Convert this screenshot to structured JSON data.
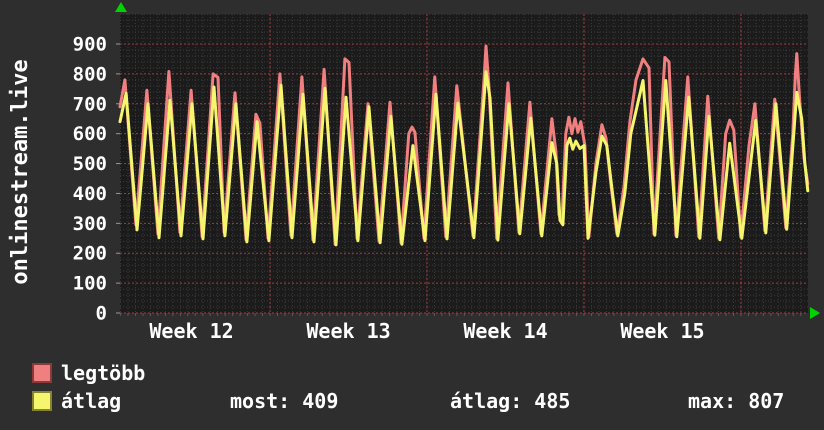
{
  "title": "onlinestream.live",
  "colors": {
    "background": "#2e2e2e",
    "plot_background": "#1b1b1b",
    "text": "#ffffff",
    "grid_minor": "#3c3c3c",
    "grid_day": "#4d4d4d",
    "grid_major_red": "#aa3a3a",
    "tick_bottom": "#5a5a5a",
    "tick_left": "#999999",
    "arrow_green": "#00d400",
    "series_legtobb": "#f08080",
    "series_atlag": "#f5f56e",
    "swatch_border_legtobb": "#8a3a3a",
    "swatch_border_atlag": "#85852f"
  },
  "legend": {
    "series": [
      {
        "label": "legtöbb",
        "color": "#f08080"
      },
      {
        "label": "átlag",
        "color": "#f5f56e"
      }
    ],
    "stats": [
      {
        "key": "most",
        "text": "most: 409"
      },
      {
        "key": "atlag",
        "text": "átlag: 485"
      },
      {
        "key": "max",
        "text": "max: 807"
      }
    ]
  },
  "chart_data": {
    "type": "line",
    "title": "onlinestream.live",
    "xlabel": "",
    "ylabel": "",
    "ylim": [
      0,
      900
    ],
    "y_ticks": [
      0,
      100,
      200,
      300,
      400,
      500,
      600,
      700,
      800,
      900
    ],
    "y_minor_step": 20,
    "grid": true,
    "legend_position": "bottom-left",
    "x_total_days": 30.68,
    "x_week_boundaries_days": [
      6.69,
      13.69,
      20.69,
      27.69
    ],
    "x_tick_labels": [
      {
        "label": "Week 12",
        "day": 3.19
      },
      {
        "label": "Week 13",
        "day": 10.19
      },
      {
        "label": "Week 14",
        "day": 17.19
      },
      {
        "label": "Week 15",
        "day": 24.19
      }
    ],
    "stats": {
      "most": 409,
      "atlag": 485,
      "max": 807
    },
    "series": [
      {
        "name": "legtöbb",
        "color": "#f08080",
        "points": [
          [
            0,
            690
          ],
          [
            0.22,
            780
          ],
          [
            0.71,
            295
          ],
          [
            1.2,
            745
          ],
          [
            1.69,
            265
          ],
          [
            2.18,
            808
          ],
          [
            2.67,
            270
          ],
          [
            3.17,
            745
          ],
          [
            3.66,
            255
          ],
          [
            4.15,
            800
          ],
          [
            4.37,
            788
          ],
          [
            4.64,
            270
          ],
          [
            5.13,
            737
          ],
          [
            5.62,
            245
          ],
          [
            6.06,
            665
          ],
          [
            6.24,
            635
          ],
          [
            6.6,
            250
          ],
          [
            7.13,
            800
          ],
          [
            7.62,
            260
          ],
          [
            8.11,
            790
          ],
          [
            8.6,
            245
          ],
          [
            9.1,
            815
          ],
          [
            9.59,
            230
          ],
          [
            10.03,
            850
          ],
          [
            10.21,
            838
          ],
          [
            10.57,
            250
          ],
          [
            11.06,
            700
          ],
          [
            11.55,
            240
          ],
          [
            12.04,
            705
          ],
          [
            12.53,
            235
          ],
          [
            12.88,
            600
          ],
          [
            13.02,
            622
          ],
          [
            13.15,
            605
          ],
          [
            13.55,
            250
          ],
          [
            14.04,
            790
          ],
          [
            14.53,
            255
          ],
          [
            15.02,
            760
          ],
          [
            15.74,
            258
          ],
          [
            16.23,
            780
          ],
          [
            16.32,
            893
          ],
          [
            16.45,
            760
          ],
          [
            16.8,
            250
          ],
          [
            17.3,
            770
          ],
          [
            17.79,
            270
          ],
          [
            18.28,
            705
          ],
          [
            18.77,
            265
          ],
          [
            19.26,
            650
          ],
          [
            19.44,
            540
          ],
          [
            19.57,
            330
          ],
          [
            19.7,
            300
          ],
          [
            19.88,
            600
          ],
          [
            20.02,
            655
          ],
          [
            20.15,
            600
          ],
          [
            20.29,
            650
          ],
          [
            20.42,
            605
          ],
          [
            20.55,
            640
          ],
          [
            20.73,
            560
          ],
          [
            20.91,
            255
          ],
          [
            21.22,
            500
          ],
          [
            21.49,
            630
          ],
          [
            21.67,
            585
          ],
          [
            21.89,
            430
          ],
          [
            22.16,
            265
          ],
          [
            22.47,
            420
          ],
          [
            22.74,
            640
          ],
          [
            23.01,
            780
          ],
          [
            23.32,
            850
          ],
          [
            23.59,
            820
          ],
          [
            23.81,
            265
          ],
          [
            24.3,
            855
          ],
          [
            24.48,
            840
          ],
          [
            24.79,
            260
          ],
          [
            25.32,
            790
          ],
          [
            25.81,
            255
          ],
          [
            26.21,
            725
          ],
          [
            26.7,
            250
          ],
          [
            27.01,
            600
          ],
          [
            27.19,
            645
          ],
          [
            27.37,
            612
          ],
          [
            27.68,
            255
          ],
          [
            28.05,
            560
          ],
          [
            28.31,
            700
          ],
          [
            28.76,
            275
          ],
          [
            29.2,
            715
          ],
          [
            29.69,
            285
          ],
          [
            30,
            600
          ],
          [
            30.12,
            800
          ],
          [
            30.18,
            868
          ],
          [
            30.3,
            720
          ],
          [
            30.5,
            520
          ],
          [
            30.67,
            432
          ]
        ]
      },
      {
        "name": "átlag",
        "color": "#f5f56e",
        "points": [
          [
            0,
            640
          ],
          [
            0.27,
            735
          ],
          [
            0.76,
            278
          ],
          [
            1.25,
            700
          ],
          [
            1.74,
            252
          ],
          [
            2.23,
            712
          ],
          [
            2.72,
            258
          ],
          [
            3.21,
            700
          ],
          [
            3.7,
            248
          ],
          [
            4.19,
            756
          ],
          [
            4.68,
            258
          ],
          [
            5.17,
            700
          ],
          [
            5.66,
            238
          ],
          [
            6.11,
            640
          ],
          [
            6.64,
            242
          ],
          [
            7.18,
            762
          ],
          [
            7.67,
            252
          ],
          [
            8.16,
            732
          ],
          [
            8.65,
            238
          ],
          [
            9.14,
            752
          ],
          [
            9.63,
            228
          ],
          [
            10.08,
            722
          ],
          [
            10.61,
            242
          ],
          [
            11.1,
            690
          ],
          [
            11.6,
            235
          ],
          [
            12.08,
            658
          ],
          [
            12.57,
            230
          ],
          [
            13.06,
            560
          ],
          [
            13.6,
            242
          ],
          [
            14.09,
            732
          ],
          [
            14.58,
            248
          ],
          [
            15.07,
            702
          ],
          [
            15.78,
            252
          ],
          [
            16.32,
            807
          ],
          [
            16.5,
            720
          ],
          [
            16.85,
            244
          ],
          [
            17.34,
            700
          ],
          [
            17.83,
            265
          ],
          [
            18.32,
            652
          ],
          [
            18.81,
            258
          ],
          [
            19.26,
            570
          ],
          [
            19.48,
            500
          ],
          [
            19.62,
            310
          ],
          [
            19.75,
            295
          ],
          [
            19.93,
            560
          ],
          [
            20.06,
            585
          ],
          [
            20.19,
            548
          ],
          [
            20.33,
            575
          ],
          [
            20.51,
            550
          ],
          [
            20.69,
            560
          ],
          [
            20.87,
            250
          ],
          [
            21.22,
            470
          ],
          [
            21.49,
            592
          ],
          [
            21.71,
            560
          ],
          [
            21.93,
            420
          ],
          [
            22.2,
            258
          ],
          [
            22.51,
            400
          ],
          [
            22.78,
            600
          ],
          [
            23.32,
            778
          ],
          [
            23.85,
            260
          ],
          [
            24.34,
            778
          ],
          [
            24.83,
            255
          ],
          [
            25.36,
            722
          ],
          [
            25.86,
            250
          ],
          [
            26.26,
            658
          ],
          [
            26.75,
            245
          ],
          [
            27.19,
            568
          ],
          [
            27.73,
            250
          ],
          [
            28.35,
            645
          ],
          [
            28.8,
            268
          ],
          [
            29.25,
            700
          ],
          [
            29.73,
            280
          ],
          [
            30.18,
            738
          ],
          [
            30.4,
            650
          ],
          [
            30.54,
            500
          ],
          [
            30.67,
            409
          ]
        ]
      }
    ]
  }
}
